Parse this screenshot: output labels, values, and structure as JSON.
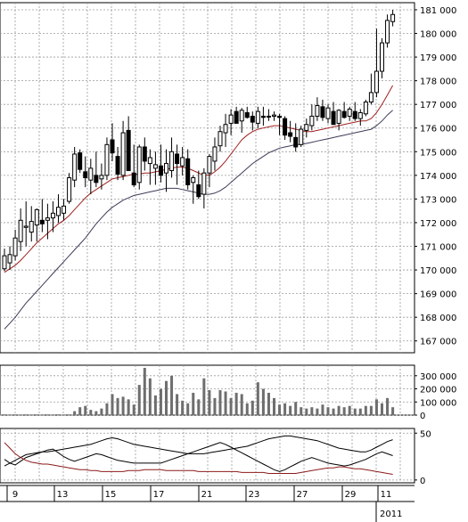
{
  "chart_data": [
    {
      "type": "candlestick",
      "panel": "price",
      "ylim": [
        166500,
        181300
      ],
      "yticks": [
        167000,
        168000,
        169000,
        170000,
        171000,
        172000,
        173000,
        174000,
        175000,
        176000,
        177000,
        178000,
        179000,
        180000,
        181000
      ],
      "ytick_labels": [
        "167 000",
        "168 000",
        "169 000",
        "170 000",
        "171 000",
        "172 000",
        "173 000",
        "174 000",
        "175 000",
        "176 000",
        "177 000",
        "178 000",
        "179 000",
        "180 000",
        "181 000"
      ],
      "grid": true,
      "ohlc": [
        [
          170050,
          170900,
          169950,
          170600
        ],
        [
          170300,
          171000,
          170000,
          170650
        ],
        [
          170600,
          171700,
          170400,
          171350
        ],
        [
          171200,
          172600,
          170800,
          172100
        ],
        [
          171800,
          172900,
          171000,
          171850
        ],
        [
          171600,
          172700,
          171200,
          172050
        ],
        [
          171900,
          172600,
          171200,
          172550
        ],
        [
          172100,
          173000,
          171600,
          171950
        ],
        [
          172100,
          172800,
          171300,
          172200
        ],
        [
          172200,
          172900,
          171600,
          172400
        ],
        [
          172300,
          173200,
          172000,
          172650
        ],
        [
          172400,
          173000,
          172100,
          172700
        ],
        [
          172900,
          174100,
          172800,
          173900
        ],
        [
          173800,
          175200,
          173500,
          174900
        ],
        [
          174950,
          175100,
          174100,
          174250
        ],
        [
          174150,
          174800,
          173500,
          173900
        ],
        [
          173800,
          174700,
          173200,
          174300
        ],
        [
          174000,
          175000,
          173500,
          173700
        ],
        [
          173850,
          174500,
          173400,
          174000
        ],
        [
          174000,
          175600,
          173800,
          175300
        ],
        [
          175500,
          176200,
          174600,
          174950
        ],
        [
          174800,
          175200,
          173800,
          174050
        ],
        [
          174000,
          176300,
          173800,
          175800
        ],
        [
          175900,
          176500,
          174200,
          174200
        ],
        [
          174100,
          175300,
          173500,
          173600
        ],
        [
          173700,
          175300,
          173400,
          175200
        ],
        [
          175200,
          175600,
          174200,
          174600
        ],
        [
          174500,
          175100,
          173600,
          174750
        ],
        [
          174300,
          175000,
          173600,
          174450
        ],
        [
          174400,
          175300,
          173700,
          174000
        ],
        [
          174100,
          175100,
          173300,
          174500
        ],
        [
          174200,
          175600,
          173900,
          175000
        ],
        [
          174900,
          175300,
          173600,
          174500
        ],
        [
          174400,
          175200,
          174000,
          174750
        ],
        [
          174700,
          175100,
          173400,
          173600
        ],
        [
          173700,
          174000,
          172800,
          173900
        ],
        [
          173600,
          174200,
          173000,
          173100
        ],
        [
          173200,
          174300,
          172600,
          174100
        ],
        [
          174100,
          174900,
          173500,
          174800
        ],
        [
          174600,
          175600,
          174200,
          175200
        ],
        [
          175250,
          176100,
          175000,
          175850
        ],
        [
          175800,
          176600,
          175200,
          176150
        ],
        [
          176200,
          176800,
          175700,
          176550
        ],
        [
          176700,
          176900,
          176200,
          176200
        ],
        [
          176300,
          176850,
          175800,
          176750
        ],
        [
          176650,
          176900,
          176400,
          176450
        ],
        [
          176500,
          176700,
          175900,
          176250
        ],
        [
          176200,
          176900,
          176000,
          176700
        ],
        [
          176500,
          176900,
          176100,
          176450
        ],
        [
          176500,
          176800,
          176300,
          176500
        ],
        [
          176500,
          176700,
          176300,
          176550
        ],
        [
          176500,
          176600,
          175700,
          176450
        ],
        [
          176400,
          176500,
          175500,
          175700
        ],
        [
          175800,
          176300,
          175400,
          175650
        ],
        [
          175600,
          176200,
          175000,
          175200
        ],
        [
          175300,
          176100,
          175200,
          175950
        ],
        [
          175900,
          176400,
          175600,
          176150
        ],
        [
          176100,
          177000,
          175900,
          176500
        ],
        [
          176500,
          177300,
          176300,
          176950
        ],
        [
          176900,
          177200,
          176300,
          176450
        ],
        [
          176400,
          177000,
          176200,
          176850
        ],
        [
          176700,
          177100,
          176200,
          176150
        ],
        [
          176200,
          176800,
          175900,
          176750
        ],
        [
          176700,
          177100,
          176400,
          176450
        ],
        [
          176500,
          176900,
          176300,
          176800
        ],
        [
          176700,
          177100,
          176300,
          176400
        ],
        [
          176400,
          176800,
          176100,
          176650
        ],
        [
          176600,
          177200,
          176500,
          177100
        ],
        [
          177100,
          178300,
          177000,
          177500
        ],
        [
          177500,
          180200,
          177300,
          178400
        ],
        [
          178400,
          179800,
          178100,
          179600
        ],
        [
          179600,
          180800,
          179400,
          180550
        ],
        [
          180500,
          181000,
          180300,
          180800
        ]
      ],
      "ma_short": [
        169900,
        170050,
        170200,
        170400,
        170650,
        170900,
        171150,
        171350,
        171550,
        171750,
        171950,
        172100,
        172300,
        172550,
        172800,
        173050,
        173250,
        173400,
        173550,
        173700,
        173850,
        173900,
        173950,
        174000,
        174050,
        174050,
        174100,
        174100,
        174150,
        174200,
        174250,
        174300,
        174350,
        174350,
        174300,
        174200,
        174100,
        174000,
        174000,
        174150,
        174350,
        174600,
        174900,
        175200,
        175500,
        175700,
        175850,
        175950,
        176000,
        176050,
        176100,
        176100,
        176050,
        176000,
        175950,
        175900,
        175850,
        175850,
        175900,
        175950,
        176000,
        176050,
        176100,
        176150,
        176200,
        176250,
        176300,
        176300,
        176400,
        176650,
        177000,
        177400,
        177800
      ],
      "ma_long": [
        167500,
        167750,
        168000,
        168300,
        168600,
        168850,
        169100,
        169350,
        169600,
        169850,
        170100,
        170350,
        170600,
        170850,
        171100,
        171350,
        171650,
        171950,
        172200,
        172450,
        172650,
        172800,
        172950,
        173050,
        173150,
        173200,
        173250,
        173300,
        173350,
        173400,
        173450,
        173450,
        173450,
        173400,
        173350,
        173300,
        173250,
        173200,
        173200,
        173250,
        173350,
        173500,
        173700,
        173900,
        174100,
        174300,
        174500,
        174650,
        174800,
        174950,
        175050,
        175150,
        175200,
        175250,
        175300,
        175300,
        175350,
        175400,
        175450,
        175500,
        175550,
        175600,
        175650,
        175700,
        175750,
        175800,
        175850,
        175900,
        175950,
        176100,
        176300,
        176550,
        176750
      ]
    },
    {
      "type": "bar",
      "panel": "volume",
      "ylim": [
        0,
        380000
      ],
      "yticks": [
        0,
        100000,
        200000,
        300000
      ],
      "ytick_labels": [
        "0",
        "100 000",
        "200 000",
        "300 000"
      ],
      "grid": true,
      "values": [
        5000,
        5000,
        5000,
        5000,
        5000,
        5000,
        5000,
        5000,
        5000,
        5000,
        5000,
        5000,
        5000,
        30000,
        60000,
        70000,
        40000,
        30000,
        50000,
        90000,
        160000,
        130000,
        140000,
        120000,
        80000,
        230000,
        360000,
        280000,
        150000,
        200000,
        260000,
        300000,
        160000,
        110000,
        90000,
        170000,
        120000,
        280000,
        190000,
        130000,
        190000,
        180000,
        130000,
        170000,
        160000,
        90000,
        110000,
        250000,
        200000,
        170000,
        130000,
        80000,
        90000,
        70000,
        100000,
        60000,
        50000,
        60000,
        50000,
        80000,
        60000,
        50000,
        70000,
        60000,
        70000,
        50000,
        50000,
        70000,
        70000,
        120000,
        90000,
        130000,
        60000
      ]
    },
    {
      "type": "line",
      "panel": "indicator",
      "ylim": [
        -3,
        55
      ],
      "yticks": [
        0,
        50
      ],
      "ytick_labels": [
        "0",
        "50"
      ],
      "grid": true,
      "series": [
        {
          "color": "#000000",
          "values": [
            15,
            18,
            21,
            24,
            27,
            28,
            29,
            30,
            30,
            31,
            32,
            33,
            34,
            35,
            36,
            37,
            38,
            40,
            42,
            44,
            45,
            44,
            42,
            40,
            38,
            37,
            36,
            35,
            34,
            33,
            32,
            31,
            30,
            29,
            28,
            28,
            28,
            28,
            29,
            30,
            31,
            32,
            33,
            34,
            35,
            36,
            38,
            40,
            42,
            44,
            45,
            46,
            47,
            47,
            46,
            45,
            44,
            43,
            42,
            40,
            38,
            36,
            34,
            33,
            32,
            31,
            30,
            30,
            32,
            35,
            38,
            41,
            43
          ]
        },
        {
          "color": "#000000",
          "values": [
            22,
            18,
            16,
            20,
            24,
            26,
            28,
            30,
            32,
            33,
            29,
            25,
            22,
            20,
            22,
            24,
            26,
            28,
            27,
            25,
            23,
            21,
            20,
            19,
            18,
            18,
            18,
            18,
            18,
            18,
            20,
            22,
            24,
            26,
            28,
            30,
            32,
            34,
            36,
            38,
            40,
            38,
            35,
            32,
            29,
            26,
            23,
            20,
            17,
            14,
            11,
            9,
            11,
            14,
            17,
            20,
            22,
            24,
            22,
            20,
            18,
            17,
            16,
            15,
            16,
            18,
            20,
            22,
            25,
            28,
            30,
            28,
            26
          ]
        },
        {
          "color": "#8b1a1a",
          "values": [
            40,
            34,
            28,
            24,
            21,
            19,
            18,
            17,
            17,
            16,
            15,
            14,
            13,
            12,
            11,
            11,
            10,
            10,
            9,
            9,
            9,
            9,
            9,
            10,
            10,
            10,
            11,
            11,
            11,
            11,
            10,
            10,
            10,
            10,
            10,
            10,
            9,
            9,
            9,
            9,
            9,
            9,
            9,
            9,
            8,
            8,
            8,
            8,
            8,
            7,
            7,
            7,
            7,
            7,
            7,
            8,
            9,
            10,
            11,
            12,
            13,
            13,
            14,
            14,
            13,
            12,
            12,
            11,
            10,
            9,
            8,
            7,
            6
          ]
        }
      ]
    },
    {
      "type": "axis",
      "panel": "time",
      "x_labels": [
        "9",
        "13",
        "15",
        "17",
        "21",
        "23",
        "27",
        "29",
        "11"
      ],
      "year_label": "2011"
    }
  ]
}
